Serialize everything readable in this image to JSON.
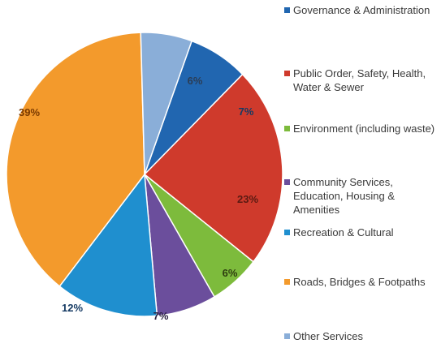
{
  "chart_data": {
    "type": "pie",
    "series": [
      {
        "name": "Governance & Administration",
        "label": "7%",
        "value": 7,
        "color": "#2166b0"
      },
      {
        "name": "Public Order, Safety, Health, Water & Sewer",
        "label": "23%",
        "value": 23,
        "color": "#cf3a2c"
      },
      {
        "name": "Environment (including waste)",
        "label": "6%",
        "value": 6,
        "color": "#7dbb3c"
      },
      {
        "name": "Community Services, Education, Housing & Amenities",
        "label": "7%",
        "value": 7,
        "color": "#6b4e9c"
      },
      {
        "name": "Recreation & Cultural",
        "label": "12%",
        "value": 12,
        "color": "#1f8fcf"
      },
      {
        "name": "Roads, Bridges & Footpaths",
        "label": "39%",
        "value": 39,
        "color": "#f39a2c"
      },
      {
        "name": "Other Services",
        "label": "6%",
        "value": 6,
        "color": "#8aaed8"
      }
    ],
    "legend_position": "right"
  }
}
